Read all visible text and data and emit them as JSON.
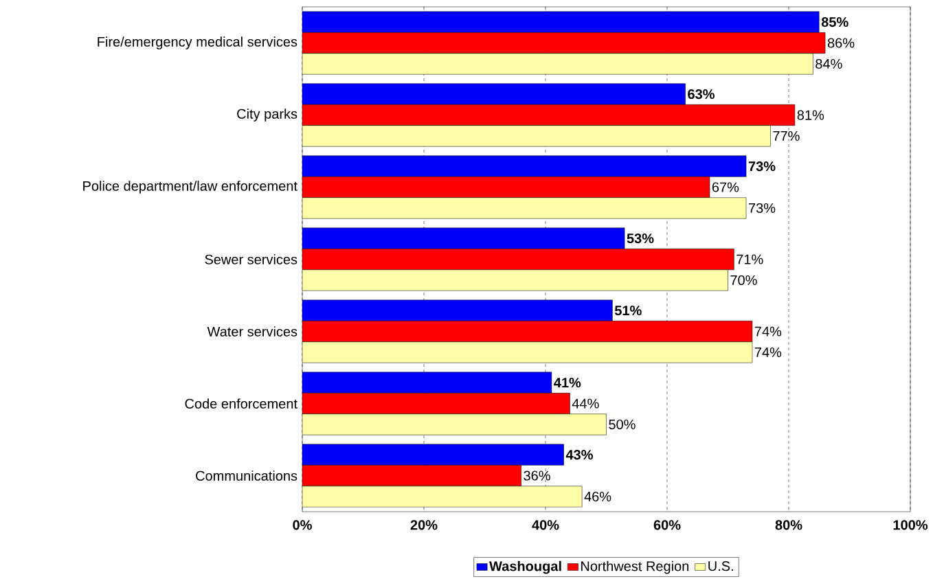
{
  "chart_data": {
    "type": "bar",
    "orientation": "horizontal",
    "categories": [
      "Fire/emergency medical services",
      "City parks",
      "Police department/law enforcement",
      "Sewer services",
      "Water services",
      "Code enforcement",
      "Communications"
    ],
    "series": [
      {
        "name": "Washougal",
        "color": "#0000ff",
        "values": [
          85,
          63,
          73,
          53,
          51,
          41,
          43
        ],
        "value_labels": [
          "85%",
          "63%",
          "73%",
          "53%",
          "51%",
          "41%",
          "43%"
        ]
      },
      {
        "name": "Northwest Region",
        "color": "#ff0000",
        "values": [
          86,
          81,
          67,
          71,
          74,
          44,
          36
        ],
        "value_labels": [
          "86%",
          "81%",
          "67%",
          "71%",
          "74%",
          "44%",
          "36%"
        ]
      },
      {
        "name": "U.S.",
        "color": "#ffffa8",
        "values": [
          84,
          77,
          73,
          70,
          74,
          50,
          46
        ],
        "value_labels": [
          "84%",
          "77%",
          "73%",
          "70%",
          "74%",
          "50%",
          "46%"
        ]
      }
    ],
    "xlim": [
      0,
      100
    ],
    "xticks": [
      {
        "value": 0,
        "label": "0%"
      },
      {
        "value": 20,
        "label": "20%"
      },
      {
        "value": 40,
        "label": "40%"
      },
      {
        "value": 60,
        "label": "60%"
      },
      {
        "value": 80,
        "label": "80%"
      },
      {
        "value": 100,
        "label": "100%"
      }
    ],
    "grid": "x",
    "legend": "bottom"
  }
}
